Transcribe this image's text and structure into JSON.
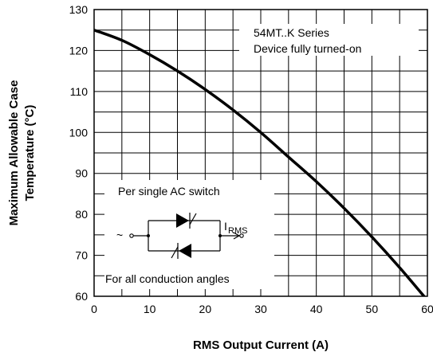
{
  "chart_data": {
    "type": "line",
    "xlabel": "RMS Output Current (A)",
    "ylabel_lines": [
      "Maximum Allowable Case",
      "Temperature (°C)"
    ],
    "xlim": [
      0,
      60
    ],
    "ylim": [
      60,
      130
    ],
    "x_ticks": [
      "0",
      "10",
      "20",
      "30",
      "40",
      "50",
      "60"
    ],
    "y_ticks": [
      "60",
      "70",
      "80",
      "90",
      "100",
      "110",
      "120",
      "130"
    ],
    "grid": true,
    "series": [
      {
        "x": [
          0,
          5,
          10,
          15,
          20,
          25,
          30,
          35,
          40,
          45,
          50,
          55,
          60
        ],
        "y": [
          125,
          122.5,
          119,
          115,
          110.5,
          105.5,
          100,
          94,
          88,
          81.5,
          74.5,
          67,
          59
        ]
      }
    ],
    "annotations": {
      "series_label": "54MT..K Series",
      "condition_label": "Device fully turned-on",
      "inset_title": "Per single AC switch",
      "inset_footer": "For all conduction angles",
      "source_symbol": "~",
      "current_symbol": "I",
      "current_subscript": "RMS"
    }
  }
}
